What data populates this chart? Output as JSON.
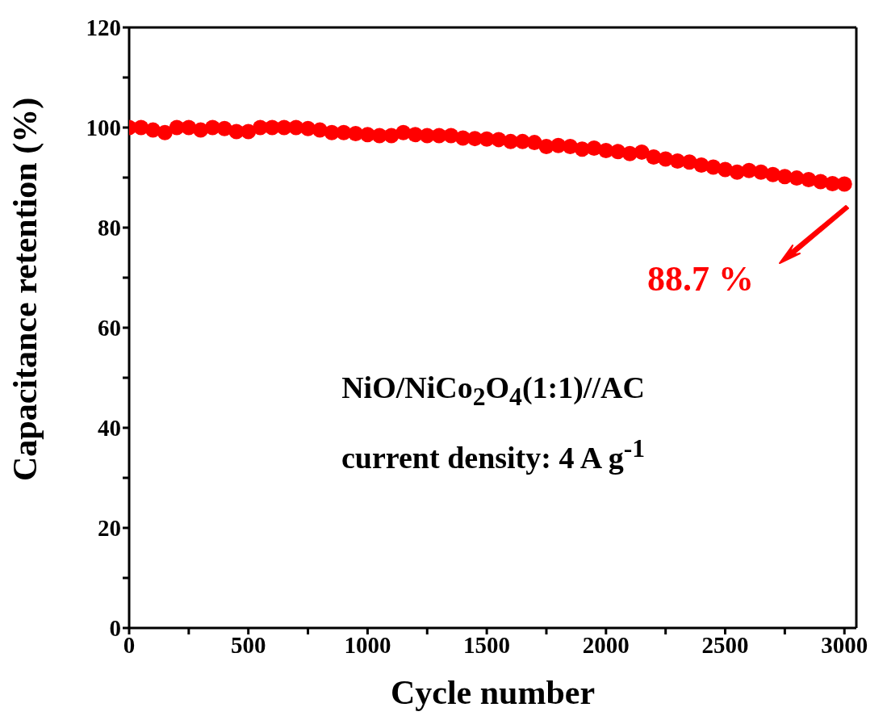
{
  "chart_data": {
    "type": "scatter",
    "xlabel": "Cycle number",
    "ylabel": "Capacitance retention (%)",
    "x": [
      0,
      50,
      100,
      150,
      200,
      250,
      300,
      350,
      400,
      450,
      500,
      550,
      600,
      650,
      700,
      750,
      800,
      850,
      900,
      950,
      1000,
      1050,
      1100,
      1150,
      1200,
      1250,
      1300,
      1350,
      1400,
      1450,
      1500,
      1550,
      1600,
      1650,
      1700,
      1750,
      1800,
      1850,
      1900,
      1950,
      2000,
      2050,
      2100,
      2150,
      2200,
      2250,
      2300,
      2350,
      2400,
      2450,
      2500,
      2550,
      2600,
      2650,
      2700,
      2750,
      2800,
      2850,
      2900,
      2950,
      3000
    ],
    "series": [
      {
        "color": "#ff0000",
        "values": [
          100,
          100,
          99.5,
          99,
          100,
          100,
          99.5,
          100,
          99.8,
          99.2,
          99.2,
          100,
          100,
          100,
          100,
          99.8,
          99.5,
          99,
          99,
          98.8,
          98.6,
          98.4,
          98.4,
          99,
          98.6,
          98.4,
          98.4,
          98.4,
          97.9,
          97.8,
          97.7,
          97.6,
          97.2,
          97.2,
          97,
          96.2,
          96.4,
          96.2,
          95.7,
          95.9,
          95.4,
          95.2,
          94.8,
          95.1,
          94.1,
          93.7,
          93.3,
          93.1,
          92.5,
          92.1,
          91.6,
          91.1,
          91.4,
          91.1,
          90.6,
          90.2,
          89.9,
          89.6,
          89.2,
          88.8,
          88.7
        ]
      }
    ],
    "marker": "circle",
    "xlim": [
      0,
      3050
    ],
    "xticks": [
      0,
      {
        "value": 250,
        "label": null
      },
      500,
      {
        "value": 750,
        "label": null
      },
      1000,
      {
        "value": 1250,
        "label": null
      },
      1500,
      {
        "value": 1750,
        "label": null
      },
      2000,
      {
        "value": 2250,
        "label": null
      },
      2500,
      {
        "value": 2750,
        "label": null
      },
      3000
    ],
    "ylim": [
      0,
      120
    ],
    "yticks": [
      0,
      {
        "value": 10,
        "label": null
      },
      20,
      {
        "value": 30,
        "label": null
      },
      40,
      {
        "value": 50,
        "label": null
      },
      60,
      {
        "value": 70,
        "label": null
      },
      80,
      {
        "value": 90,
        "label": null
      },
      100,
      {
        "value": 110,
        "label": null
      },
      120
    ],
    "annotations": [
      "88.7 %",
      "NiO/NiCo$_{2}$O$_{4}$(1:1)//AC",
      "current density: 4 A g$^{-1}$"
    ]
  }
}
